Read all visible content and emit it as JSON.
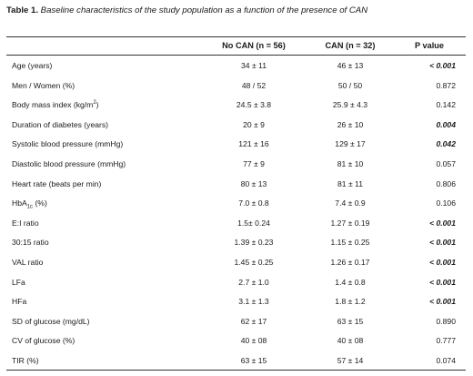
{
  "caption": {
    "label": "Table 1.",
    "text": " Baseline characteristics of the study population as a function of the presence of CAN"
  },
  "columns": {
    "no_can": "No CAN (n = 56)",
    "can": "CAN (n = 32)",
    "p_value": "P value"
  },
  "rows": [
    {
      "label": "Age (years)",
      "no_can": "34 ± 11",
      "can": "46 ± 13",
      "p": "< 0.001",
      "sig": true
    },
    {
      "label": "Men / Women  (%)",
      "no_can": "48 / 52",
      "can": "50 / 50",
      "p": "0.872",
      "sig": false
    },
    {
      "label_pre": "Body mass index (kg/m",
      "label_sup": "2",
      "label_post": ")",
      "no_can": "24.5 ± 3.8",
      "can": "25.9 ± 4.3",
      "p": "0.142",
      "sig": false
    },
    {
      "label": "Duration of diabetes (years)",
      "no_can": "20 ± 9",
      "can": "26 ± 10",
      "p": "0.004",
      "sig": true
    },
    {
      "label": "Systolic blood pressure (mmHg)",
      "no_can": "121 ± 16",
      "can": "129 ± 17",
      "p": "0.042",
      "sig": true
    },
    {
      "label": "Diastolic blood pressure (mmHg)",
      "no_can": "77 ± 9",
      "can": "81 ± 10",
      "p": "0.057",
      "sig": false
    },
    {
      "label": "Heart rate (beats per min)",
      "no_can": "80 ± 13",
      "can": "81 ± 11",
      "p": "0.806",
      "sig": false
    },
    {
      "label_pre": "HbA",
      "label_sub": "1c",
      "label_post": " (%)",
      "no_can": "7.0 ± 0.8",
      "can": "7.4 ± 0.9",
      "p": "0.106",
      "sig": false
    },
    {
      "label": "E:I ratio",
      "no_can": "1.5± 0.24",
      "can": "1.27 ± 0.19",
      "p": "< 0.001",
      "sig": true
    },
    {
      "label": "30:15 ratio",
      "no_can": "1.39 ± 0.23",
      "can": "1.15 ± 0.25",
      "p": "< 0.001",
      "sig": true
    },
    {
      "label": "VAL ratio",
      "no_can": "1.45 ± 0.25",
      "can": "1.26 ± 0.17",
      "p": "< 0.001",
      "sig": true
    },
    {
      "label": "LFa",
      "no_can": "2.7 ± 1.0",
      "can": "1.4 ± 0.8",
      "p": "< 0.001",
      "sig": true
    },
    {
      "label": "HFa",
      "no_can": "3.1 ± 1.3",
      "can": "1.8 ± 1.2",
      "p": "< 0.001",
      "sig": true
    },
    {
      "label": "SD of glucose (mg/dL)",
      "no_can": "62 ± 17",
      "can": "63 ± 15",
      "p": "0.890",
      "sig": false
    },
    {
      "label": "CV of glucose (%)",
      "no_can": "40 ± 08",
      "can": "40 ± 08",
      "p": "0.777",
      "sig": false
    },
    {
      "label": "TIR (%)",
      "no_can": "63 ± 15",
      "can": "57 ± 14",
      "p": "0.074",
      "sig": false
    }
  ]
}
